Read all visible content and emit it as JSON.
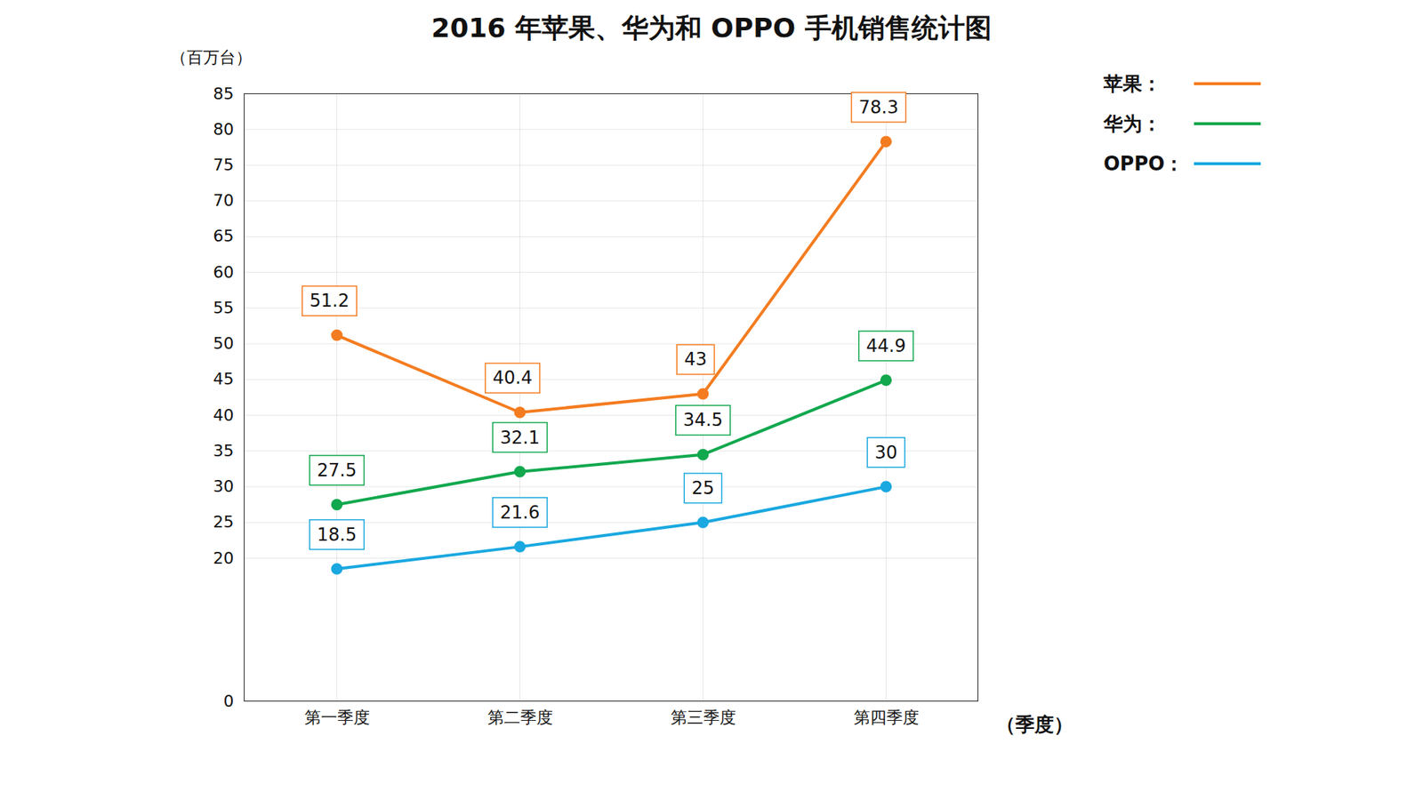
{
  "chart_data": {
    "type": "line",
    "title": "2016 年苹果、华为和 OPPO 手机销售统计图",
    "y_label": "（百万台）",
    "x_label": "（季度）",
    "categories": [
      "第一季度",
      "第二季度",
      "第三季度",
      "第四季度"
    ],
    "series": [
      {
        "name": "苹果：",
        "color": "#f47c20",
        "marker": "circle",
        "values": [
          51.2,
          40.4,
          43,
          78.3
        ]
      },
      {
        "name": "华为：",
        "color": "#12a84e",
        "marker": "circle",
        "values": [
          27.5,
          32.1,
          34.5,
          44.9
        ]
      },
      {
        "name": "OPPO：",
        "color": "#1aa8e0",
        "marker": "circle",
        "values": [
          18.5,
          21.6,
          25,
          30
        ]
      }
    ],
    "ylim": [
      0,
      85
    ],
    "yticks": [
      0,
      20,
      25,
      30,
      35,
      40,
      45,
      50,
      55,
      60,
      65,
      70,
      75,
      80,
      85
    ],
    "grid": true,
    "legend": "right",
    "data_labels": true
  }
}
